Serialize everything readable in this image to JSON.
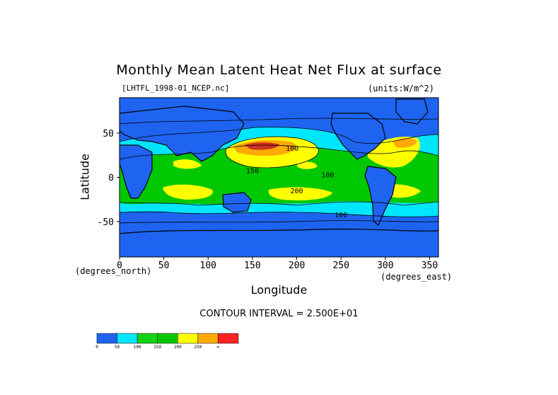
{
  "chart_data": {
    "type": "heatmap",
    "title": "Monthly Mean Latent Heat Net Flux at surface",
    "dataset_label": "[LHTFL_1998-01_NCEP.nc]",
    "units_label": "(units:W/m^2)",
    "xlabel": "Longitude",
    "ylabel": "Latitude",
    "x_unit": "(degrees_east)",
    "y_unit": "(degrees_north)",
    "xlim": [
      0,
      360
    ],
    "ylim": [
      -90,
      90
    ],
    "x_ticks": [
      0,
      50,
      100,
      150,
      200,
      250,
      300,
      350
    ],
    "y_ticks": [
      -50,
      0,
      50
    ],
    "contour_interval_text": "CONTOUR INTERVAL = 2.500E+01",
    "contour_labels": [
      "100",
      "150",
      "100",
      "200",
      "100"
    ],
    "colorbar": {
      "levels": [
        "0",
        "50",
        "100",
        "150",
        "200",
        "250",
        "∞"
      ],
      "colors": [
        "#1e64f0",
        "#00e6ff",
        "#14d214",
        "#00c800",
        "#ffff00",
        "#ffaa00",
        "#ff2222"
      ]
    }
  }
}
